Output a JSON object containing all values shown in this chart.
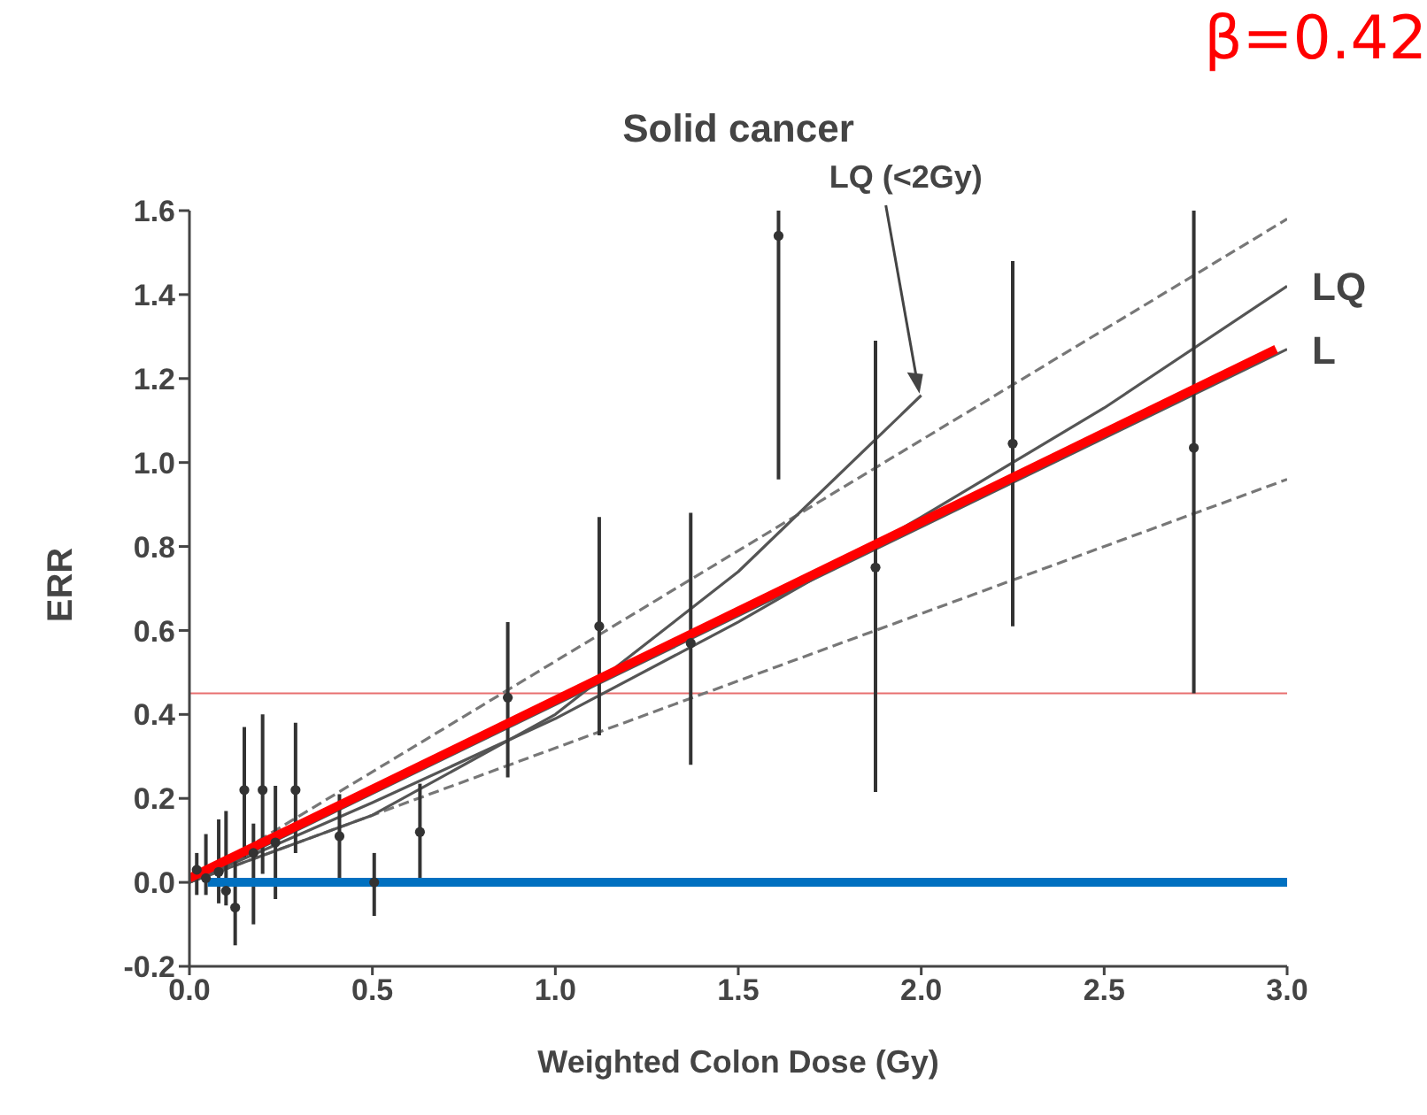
{
  "chart_data": {
    "type": "line",
    "title": "Solid cancer",
    "xlabel": "Weighted Colon Dose (Gy)",
    "ylabel": "ERR",
    "xlim": [
      0,
      3
    ],
    "ylim": [
      -0.2,
      1.6
    ],
    "xticks": [
      {
        "value": 0,
        "label": "0.0"
      },
      {
        "value": 0.5,
        "label": "0.5"
      },
      {
        "value": 1,
        "label": "1.0"
      },
      {
        "value": 1.5,
        "label": "1.5"
      },
      {
        "value": 2,
        "label": "2.0"
      },
      {
        "value": 2.5,
        "label": "2.5"
      },
      {
        "value": 3,
        "label": "3.0"
      }
    ],
    "yticks": [
      {
        "value": -0.2,
        "label": "-0.2"
      },
      {
        "value": 0,
        "label": "0.0"
      },
      {
        "value": 0.2,
        "label": "0.2"
      },
      {
        "value": 0.4,
        "label": "0.4"
      },
      {
        "value": 0.6,
        "label": "0.6"
      },
      {
        "value": 0.8,
        "label": "0.8"
      },
      {
        "value": 1,
        "label": "1.0"
      },
      {
        "value": 1.2,
        "label": "1.2"
      },
      {
        "value": 1.4,
        "label": "1.4"
      },
      {
        "value": 1.6,
        "label": "1.6"
      }
    ],
    "series": [
      {
        "type": "line",
        "color": "#777777",
        "line_style": "dashed",
        "x": [
          0,
          3
        ],
        "values": [
          0,
          1.58
        ]
      },
      {
        "type": "line",
        "color": "#777777",
        "line_style": "dashed",
        "x": [
          0,
          3
        ],
        "values": [
          0,
          0.96
        ]
      },
      {
        "name": "LQ",
        "color": "#555555",
        "line_style": "solid",
        "x": [
          0,
          0.5,
          1,
          1.5,
          2,
          2.5,
          3
        ],
        "values": [
          0,
          0.19,
          0.39,
          0.62,
          0.87,
          1.13,
          1.42
        ]
      },
      {
        "type": "line",
        "color": "#555555",
        "line_style": "solid",
        "x": [
          0,
          0.5,
          1,
          1.5,
          2
        ],
        "values": [
          0,
          0.16,
          0.4,
          0.74,
          1.16
        ]
      },
      {
        "name": "L",
        "color": "#555555",
        "line_style": "solid",
        "x": [
          0,
          3
        ],
        "values": [
          0,
          1.27
        ]
      },
      {
        "type": "scatter",
        "color": "#333333",
        "marker": "circle",
        "x": [
          0.02,
          0.045,
          0.08,
          0.1,
          0.125,
          0.15,
          0.175,
          0.2,
          0.235,
          0.29,
          0.41,
          0.505,
          0.63,
          0.87,
          1.12,
          1.37,
          1.61,
          1.875,
          2.25,
          2.745
        ],
        "values": [
          0.03,
          0.01,
          0.025,
          -0.02,
          -0.06,
          0.22,
          0.07,
          0.22,
          0.095,
          0.22,
          0.11,
          0,
          0.12,
          0.44,
          0.61,
          0.57,
          1.54,
          0.75,
          1.045,
          1.035
        ],
        "errors": [
          [
            -0.03,
            0.07
          ],
          [
            -0.03,
            0.115
          ],
          [
            -0.05,
            0.15
          ],
          [
            -0.055,
            0.17
          ],
          [
            -0.15,
            0.05
          ],
          [
            0.06,
            0.37
          ],
          [
            -0.1,
            0.14
          ],
          [
            0.02,
            0.4
          ],
          [
            -0.04,
            0.23
          ],
          [
            0.07,
            0.38
          ],
          [
            0.01,
            0.21
          ],
          [
            -0.08,
            0.07
          ],
          [
            0.01,
            0.235
          ],
          [
            0.25,
            0.62
          ],
          [
            0.35,
            0.87
          ],
          [
            0.28,
            0.88
          ],
          [
            0.96,
            1.6
          ],
          [
            0.215,
            1.29
          ],
          [
            0.61,
            1.48
          ],
          [
            0.45,
            1.6
          ]
        ]
      },
      {
        "type": "line",
        "color": "#0070c0",
        "line_style": "solid",
        "x": [
          0.05,
          3
        ],
        "values": [
          0,
          0
        ]
      },
      {
        "type": "line",
        "color": "#ff0000",
        "line_style": "solid",
        "x": [
          0,
          2.97
        ],
        "values": [
          0.01,
          1.27
        ]
      }
    ],
    "ref_lines": [
      {
        "axis": "y",
        "value": 0.45,
        "color": "#e87070"
      }
    ],
    "annotations": [
      {
        "text": "LQ (<2Gy)",
        "x": 2.0,
        "y": 1.16
      },
      "β=0.42"
    ]
  }
}
